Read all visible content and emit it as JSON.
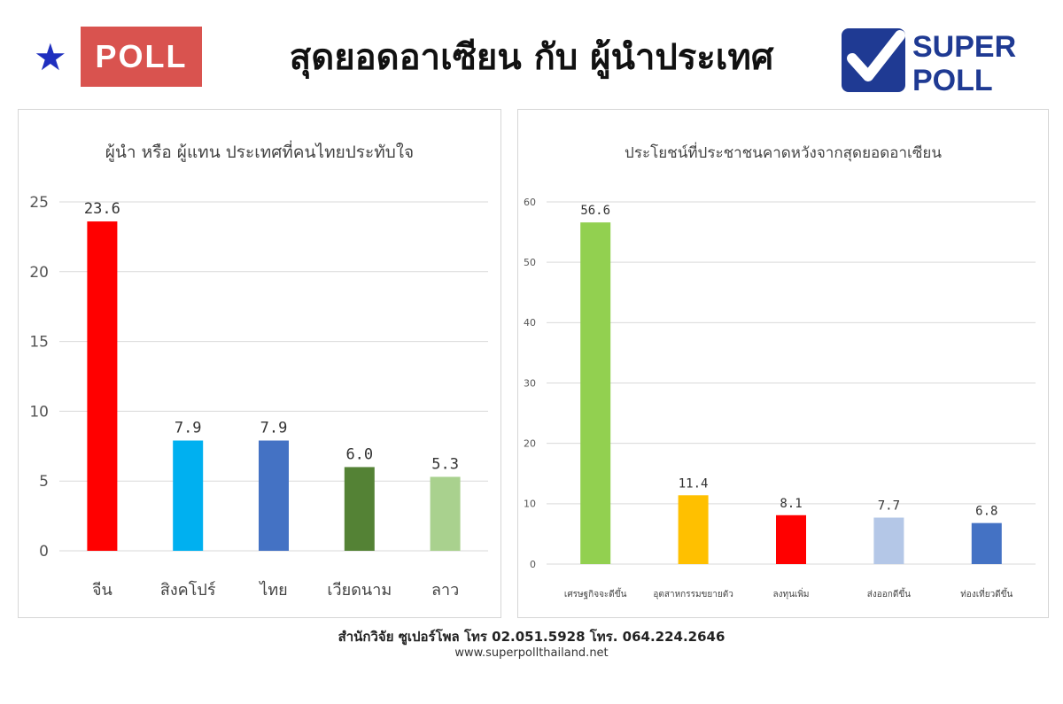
{
  "header": {
    "badge_label": "POLL",
    "title": "สุดยอดอาเซียน กับ ผู้นำประเทศ",
    "logo_line1": "SUPER",
    "logo_line2": "POLL",
    "star_icon": "star-icon",
    "star_color": "#1f2fbf",
    "badge_color": "#d9534f"
  },
  "chart_data": [
    {
      "type": "bar",
      "title": "ผู้นำ หรือ ผู้แทน ประเทศที่คนไทยประทับใจ",
      "categories": [
        "จีน",
        "สิงคโปร์",
        "ไทย",
        "เวียดนาม",
        "ลาว"
      ],
      "values": [
        23.6,
        7.9,
        7.9,
        6.0,
        5.3
      ],
      "value_labels": [
        "23.6",
        "7.9",
        "7.9",
        "6.0",
        "5.3"
      ],
      "colors": [
        "#ff0000",
        "#00b0f0",
        "#4472c4",
        "#548235",
        "#a9d18e"
      ],
      "ylim": [
        0,
        25
      ],
      "yticks": [
        0,
        5,
        10,
        15,
        20,
        25
      ],
      "grid": true,
      "legend": "none"
    },
    {
      "type": "bar",
      "title": "ประโยชน์ที่ประชาชนคาดหวังจากสุดยอดอาเซียน",
      "categories": [
        "เศรษฐกิจจะดีขึ้น",
        "อุตสาหกรรมขยายตัว",
        "ลงทุนเพิ่ม",
        "ส่งออกดีขึ้น",
        "ท่องเที่ยวดีขึ้น"
      ],
      "values": [
        56.6,
        11.4,
        8.1,
        7.7,
        6.8
      ],
      "value_labels": [
        "56.6",
        "11.4",
        "8.1",
        "7.7",
        "6.8"
      ],
      "colors": [
        "#92d050",
        "#ffc000",
        "#ff0000",
        "#b4c7e7",
        "#4472c4"
      ],
      "ylim": [
        0,
        60
      ],
      "yticks": [
        0,
        10,
        20,
        30,
        40,
        50,
        60
      ],
      "grid": true,
      "legend": "none"
    }
  ],
  "footer": {
    "line1": "สำนักวิจัย ซูเปอร์โพล โทร 02.051.5928  โทร. 064.224.2646",
    "line2": "www.superpollthailand.net"
  }
}
